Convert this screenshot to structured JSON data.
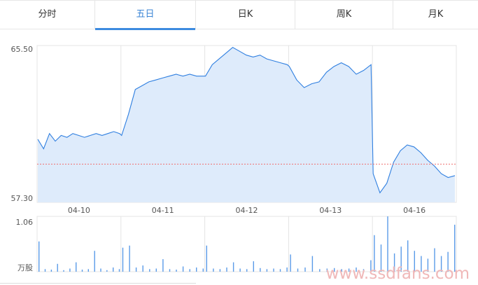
{
  "tabs": [
    {
      "label": "分时",
      "active": false
    },
    {
      "label": "五日",
      "active": true
    },
    {
      "label": "日K",
      "active": false
    },
    {
      "label": "周K",
      "active": false
    },
    {
      "label": "月K",
      "active": false
    }
  ],
  "watermark": "www.ssdfans.com",
  "colors": {
    "line": "#2f7fe0",
    "fill": "#deebfb",
    "reference": "#f07070",
    "grid": "#e4e4e4",
    "volume": "#5a9be8",
    "accent": "#3d8be0"
  },
  "chart_data": [
    {
      "type": "area",
      "ylim": [
        57.3,
        65.5
      ],
      "ytick_labels": [
        "65.50",
        "57.30"
      ],
      "categories": [
        "04-10",
        "04-11",
        "04-12",
        "04-13",
        "04-16"
      ],
      "reference_line": 59.3,
      "grid": true,
      "series": [
        {
          "days": [
            [
              60.6,
              60.1,
              60.9,
              60.5,
              60.8,
              60.7,
              60.9,
              60.8,
              60.7,
              60.8,
              60.9,
              60.8,
              60.9,
              61.0,
              60.9
            ],
            [
              60.8,
              61.9,
              63.2,
              63.4,
              63.6,
              63.7,
              63.8,
              63.9,
              64.0,
              63.9,
              64.0,
              63.9,
              63.9
            ],
            [
              63.9,
              64.5,
              64.8,
              65.1,
              65.4,
              65.2,
              65.0,
              64.9,
              65.0,
              64.8,
              64.7,
              64.6,
              64.5
            ],
            [
              64.4,
              63.7,
              63.3,
              63.5,
              63.6,
              64.1,
              64.4,
              64.6,
              64.4,
              64.0,
              64.2,
              64.5
            ],
            [
              58.8,
              57.8,
              58.3,
              59.4,
              60.0,
              60.3,
              60.2,
              59.9,
              59.5,
              59.2,
              58.8,
              58.6,
              58.7
            ]
          ]
        }
      ]
    },
    {
      "type": "bar",
      "title": "",
      "ytick_labels": [
        "1.06",
        "万股"
      ],
      "ylim": [
        0,
        1.06
      ],
      "categories": [
        "04-10",
        "04-11",
        "04-12",
        "04-13",
        "04-16"
      ],
      "series": [
        {
          "days": [
            [
              0.58,
              0.05,
              0.04,
              0.15,
              0.03,
              0.06,
              0.18,
              0.04,
              0.05,
              0.4,
              0.06,
              0.03,
              0.08,
              0.05
            ],
            [
              0.46,
              0.5,
              0.08,
              0.12,
              0.05,
              0.06,
              0.24,
              0.05,
              0.04,
              0.1,
              0.05,
              0.08,
              0.06
            ],
            [
              0.5,
              0.06,
              0.05,
              0.08,
              0.18,
              0.06,
              0.05,
              0.2,
              0.07,
              0.05,
              0.06,
              0.05,
              0.08
            ],
            [
              0.33,
              0.06,
              0.08,
              0.3,
              0.05,
              0.06,
              0.07,
              0.05,
              0.06,
              0.08,
              0.05,
              0.22
            ],
            [
              0.7,
              0.52,
              1.06,
              0.35,
              0.48,
              0.6,
              0.4,
              0.3,
              0.25,
              0.45,
              0.3,
              0.38,
              0.9
            ]
          ]
        }
      ]
    }
  ]
}
